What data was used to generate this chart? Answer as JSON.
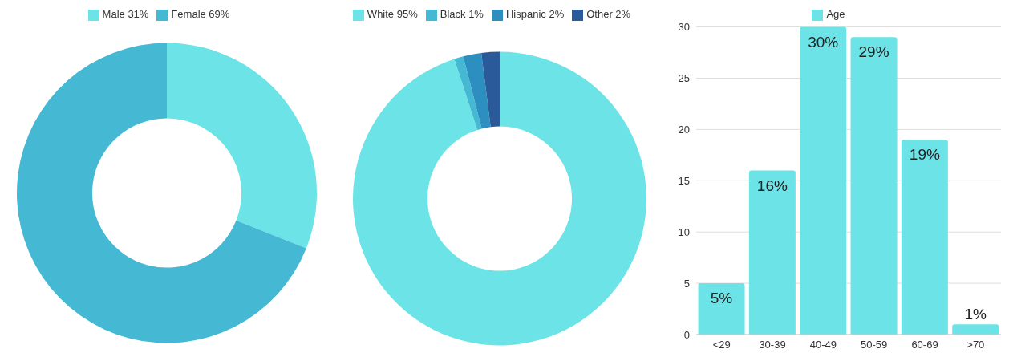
{
  "chart_data": [
    {
      "type": "donut",
      "categories": [
        "Male 31%",
        "Female 69%"
      ],
      "values": [
        31,
        69
      ],
      "colors": [
        "#6ce3e6",
        "#45b8d4"
      ],
      "legend": "top"
    },
    {
      "type": "donut",
      "categories": [
        "White 95%",
        "Black 1%",
        "Hispanic 2%",
        "Other 2%"
      ],
      "values": [
        95,
        1,
        2,
        2
      ],
      "colors": [
        "#6ce3e6",
        "#45b8d4",
        "#2d8fc0",
        "#2a5a9a"
      ],
      "legend": "top"
    },
    {
      "type": "bar",
      "categories": [
        "<29",
        "30-39",
        "40-49",
        "50-59",
        "60-69",
        ">70"
      ],
      "series": [
        {
          "name": "Age",
          "color": "#6ce3e6",
          "values": [
            5,
            16,
            30,
            29,
            19,
            1
          ],
          "value_labels": [
            "5%",
            "16%",
            "30%",
            "29%",
            "19%",
            "1%"
          ]
        }
      ],
      "ylim": [
        0,
        30
      ],
      "yticks": [
        0,
        5,
        10,
        15,
        20,
        25,
        30
      ],
      "grid": "y",
      "legend": "top"
    }
  ]
}
